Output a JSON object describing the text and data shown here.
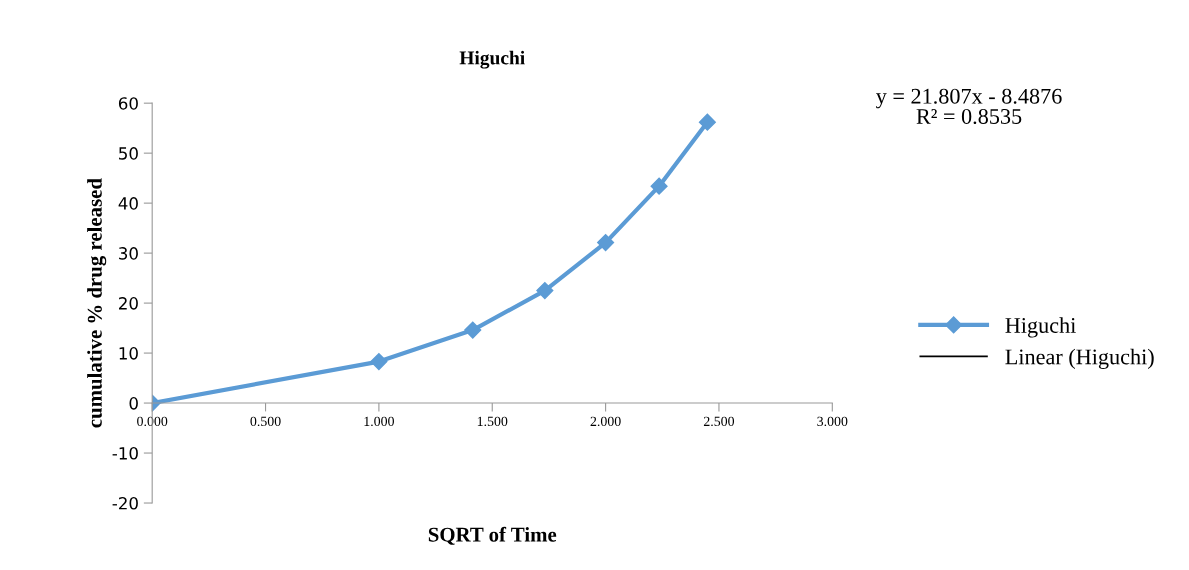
{
  "chart_data": {
    "type": "line",
    "title": "Higuchi",
    "xlabel": "SQRT of Time",
    "ylabel": "cumulative % drug released",
    "series": [
      {
        "name": "Higuchi",
        "color": "#5b9bd5",
        "marker": "diamond",
        "x": [
          0,
          1.0,
          1.414,
          1.732,
          2.0,
          2.236,
          2.449
        ],
        "values": [
          0,
          8.3,
          14.6,
          22.5,
          32.1,
          43.4,
          56.2
        ]
      },
      {
        "name": "Linear (Higuchi)",
        "color": "#000000",
        "marker": "none"
      }
    ],
    "xlim": [
      0,
      3
    ],
    "xticks": [
      {
        "value": 0,
        "label": "0.000"
      },
      {
        "value": 0.5,
        "label": "0.500"
      },
      {
        "value": 1,
        "label": "1.000"
      },
      {
        "value": 1.5,
        "label": "1.500"
      },
      {
        "value": 2,
        "label": "2.000"
      },
      {
        "value": 2.5,
        "label": "2.500"
      },
      {
        "value": 3,
        "label": "3.000"
      }
    ],
    "ylim": [
      -20,
      60
    ],
    "yticks": [
      -20,
      -10,
      0,
      10,
      20,
      30,
      40,
      50,
      60
    ],
    "grid": false,
    "legend": "right",
    "line_style": "solid",
    "annotations": [
      "y = 21.807x - 8.4876",
      "R² = 0.8535"
    ]
  }
}
